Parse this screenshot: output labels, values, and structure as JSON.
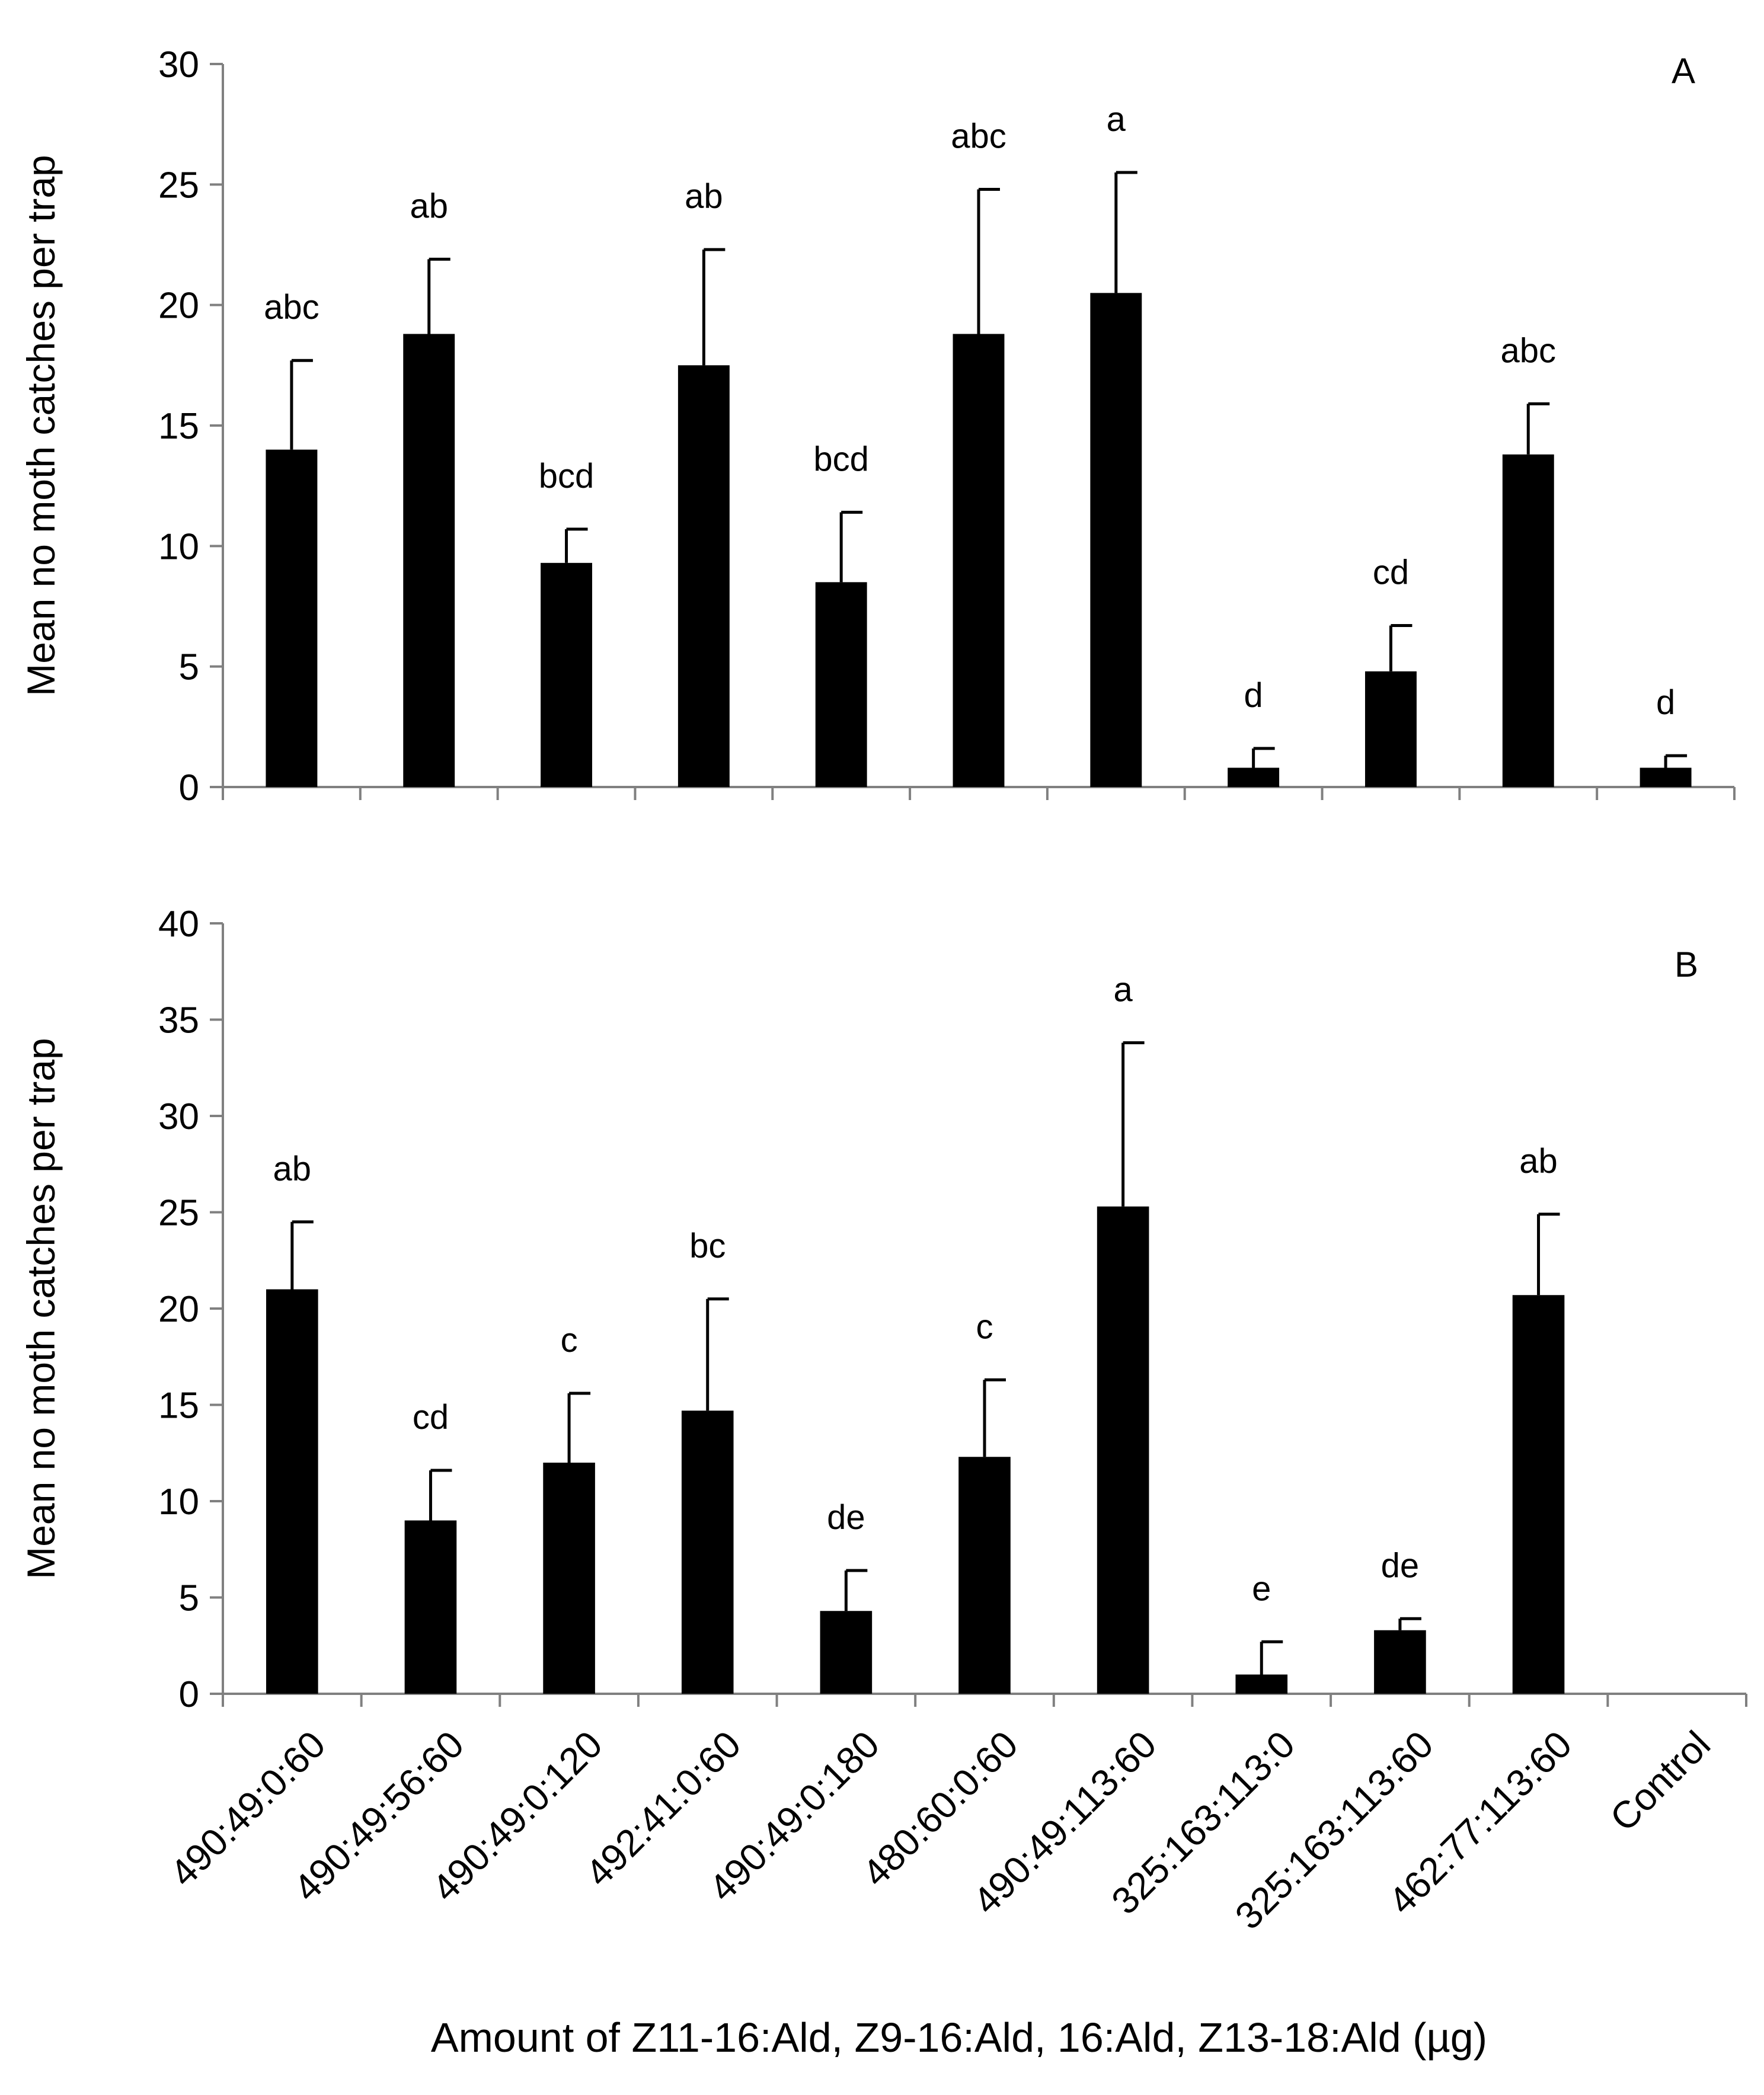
{
  "chart_data": [
    {
      "type": "bar",
      "panel_label": "A",
      "ylabel": "Mean no moth catches per trap",
      "ylim": [
        0,
        30
      ],
      "yticks": [
        0,
        5,
        10,
        15,
        20,
        25,
        30
      ],
      "categories": [
        "490:49:0:60",
        "490:49:56:60",
        "490:49:0:120",
        "492:41:0:60",
        "490:49:0:180",
        "480:60:0:60",
        "490:49:113:60",
        "325:163:113:0",
        "325:163:113:60",
        "462:77:113:60",
        "Control"
      ],
      "values": [
        14.0,
        18.8,
        9.3,
        17.5,
        8.5,
        18.8,
        20.5,
        0.8,
        4.8,
        13.8,
        0.8
      ],
      "error_upper": [
        17.7,
        21.9,
        10.7,
        22.3,
        11.4,
        24.8,
        25.5,
        1.6,
        6.7,
        15.9,
        1.3
      ],
      "significance": [
        "abc",
        "ab",
        "bcd",
        "ab",
        "bcd",
        "abc",
        "a",
        "d",
        "cd",
        "abc",
        "d"
      ]
    },
    {
      "type": "bar",
      "panel_label": "B",
      "ylabel": "Mean no moth catches per trap",
      "ylim": [
        0,
        40
      ],
      "yticks": [
        0,
        5,
        10,
        15,
        20,
        25,
        30,
        35,
        40
      ],
      "categories": [
        "490:49:0:60",
        "490:49:56:60",
        "490:49:0:120",
        "492:41:0:60",
        "490:49:0:180",
        "480:60:0:60",
        "490:49:113:60",
        "325:163:113:0",
        "325:163:113:60",
        "462:77:113:60",
        "Control"
      ],
      "values": [
        21.0,
        9.0,
        12.0,
        14.7,
        4.3,
        12.3,
        25.3,
        1.0,
        3.3,
        20.7,
        null
      ],
      "error_upper": [
        24.5,
        11.6,
        15.6,
        20.5,
        6.4,
        16.3,
        33.8,
        2.7,
        3.9,
        24.9,
        null
      ],
      "significance": [
        "ab",
        "cd",
        "c",
        "bc",
        "de",
        "c",
        "a",
        "e",
        "de",
        "ab",
        ""
      ]
    }
  ],
  "xlabel": "Amount of Z11-16:Ald, Z9-16:Ald, 16:Ald, Z13-18:Ald (µg)",
  "colors": {
    "bar": "#000000",
    "axis": "#808080"
  }
}
